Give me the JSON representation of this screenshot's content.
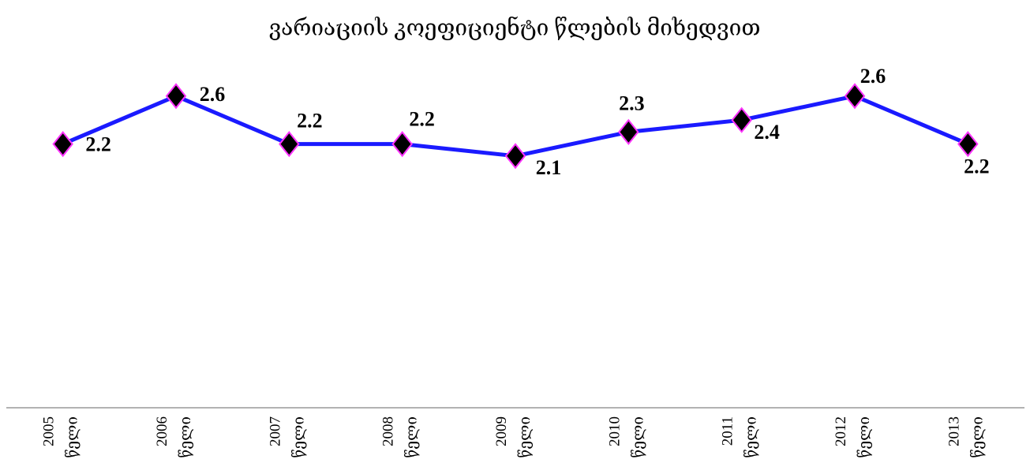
{
  "chart_data": {
    "type": "line",
    "title": "ვარიაციის კოეფიციენტი წლების მიხედვით",
    "categories": [
      "2005 წელი",
      "2006 წელი",
      "2007 წელი",
      "2008 წელი",
      "2009 წელი",
      "2010 წელი",
      "2011 წელი",
      "2012 წელი",
      "2013 წელი"
    ],
    "series": [
      {
        "name": "ვარიაციის კოეფიციენტი",
        "color": "#1a1aff",
        "values": [
          2.2,
          2.6,
          2.2,
          2.2,
          2.1,
          2.3,
          2.4,
          2.6,
          2.2
        ]
      }
    ],
    "ylim": [
      0,
      3
    ]
  }
}
